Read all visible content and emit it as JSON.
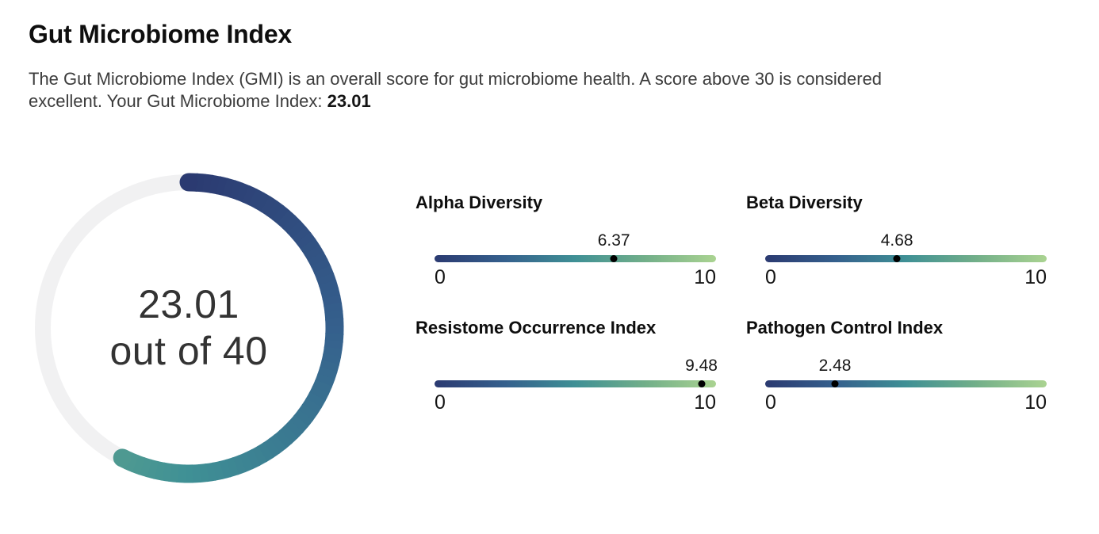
{
  "header": {
    "title": "Gut Microbiome Index",
    "description_line1": "The Gut Microbiome Index (GMI) is an overall score for gut microbiome health. A score above 30 is considered",
    "description_line2": "excellent. Your Gut Microbiome Index: ",
    "score": "23.01"
  },
  "gauge": {
    "value": 23.01,
    "min": 0,
    "max": 40,
    "value_label": "23.01",
    "caption": "out of 40",
    "track_color": "#f1f1f2"
  },
  "palette": [
    "#2b3a71",
    "#35608d",
    "#3f9095",
    "#72af89",
    "#aad391"
  ],
  "sliders": [
    {
      "label": "Alpha Diversity",
      "value": 6.37,
      "value_label": "6.37",
      "min": 0,
      "max": 10
    },
    {
      "label": "Beta Diversity",
      "value": 4.68,
      "value_label": "4.68",
      "min": 0,
      "max": 10
    },
    {
      "label": "Resistome Occurrence Index",
      "value": 9.48,
      "value_label": "9.48",
      "min": 0,
      "max": 10
    },
    {
      "label": "Pathogen Control Index",
      "value": 2.48,
      "value_label": "2.48",
      "min": 0,
      "max": 10
    }
  ],
  "chart_data": [
    {
      "type": "gauge",
      "title": "Gut Microbiome Index",
      "value": 23.01,
      "range": [
        0,
        40
      ],
      "center_label": "23.01 out of 40",
      "colorscale": [
        "#2b3a71",
        "#35608d",
        "#3f9095",
        "#72af89",
        "#aad391"
      ],
      "track_color": "#f1f1f2",
      "start_angle_deg": 0,
      "direction": "clockwise"
    },
    {
      "type": "bullet",
      "categories": [
        "Alpha Diversity",
        "Beta Diversity",
        "Resistome Occurrence Index",
        "Pathogen Control Index"
      ],
      "values": [
        6.37,
        4.68,
        9.48,
        2.48
      ],
      "xlim": [
        0,
        10
      ],
      "marker": "black-dot",
      "track_colorscale": [
        "#2b3a71",
        "#35608d",
        "#3f9095",
        "#72af89",
        "#aad391"
      ]
    }
  ]
}
